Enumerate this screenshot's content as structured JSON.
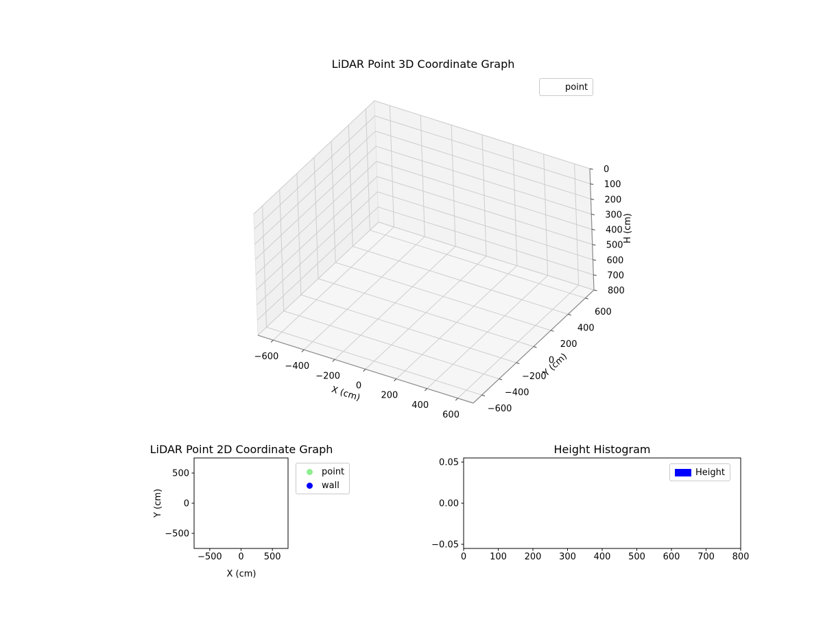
{
  "figure": {
    "background": "#ffffff"
  },
  "colors": {
    "pane_bottom": "#f6f6f6",
    "pane_left": "#f0f0f0",
    "pane_back": "#f3f3f3",
    "grid3d": "#cdcdcd",
    "axis3d_line": "#8a8a8a",
    "tick": "#444444",
    "spine": "#000000",
    "text": "#000000"
  },
  "chart_data": [
    {
      "id": "lidar-3d",
      "type": "scatter",
      "projection": "3d",
      "title": "LiDAR Point 3D Coordinate Graph",
      "xlabel": "X (cm)",
      "ylabel": "Y (cm)",
      "zlabel": "H (cm)",
      "xlim": [
        -700,
        700
      ],
      "ylim": [
        -700,
        700
      ],
      "zlim": [
        0,
        800
      ],
      "z_axis_inverted": true,
      "grid": true,
      "x_ticks": [
        -600,
        -400,
        -200,
        0,
        200,
        400,
        600
      ],
      "x_tick_labels": [
        "−600",
        "−400",
        "−200",
        "0",
        "200",
        "400",
        "600"
      ],
      "y_ticks": [
        -600,
        -400,
        -200,
        0,
        200,
        400,
        600
      ],
      "y_tick_labels": [
        "−600",
        "−400",
        "−200",
        "0",
        "200",
        "400",
        "600"
      ],
      "z_ticks": [
        0,
        100,
        200,
        300,
        400,
        500,
        600,
        700,
        800
      ],
      "z_tick_labels": [
        "0",
        "100",
        "200",
        "300",
        "400",
        "500",
        "600",
        "700",
        "800"
      ],
      "legend": {
        "position": "upper right",
        "entries": [
          {
            "label": "point",
            "marker": "none",
            "color": null
          }
        ]
      },
      "series": [
        {
          "name": "point",
          "points": []
        }
      ]
    },
    {
      "id": "lidar-2d",
      "type": "scatter",
      "title": "LiDAR Point 2D Coordinate Graph",
      "xlabel": "X (cm)",
      "ylabel": "Y (cm)",
      "xlim": [
        -750,
        750
      ],
      "ylim": [
        -750,
        750
      ],
      "grid": false,
      "x_ticks": [
        -500,
        0,
        500
      ],
      "x_tick_labels": [
        "−500",
        "0",
        "500"
      ],
      "y_ticks": [
        500,
        0,
        -500
      ],
      "y_tick_labels": [
        "500",
        "0",
        "−500"
      ],
      "legend": {
        "position": "outside upper right",
        "entries": [
          {
            "label": "point",
            "marker": "dot",
            "color": "#90ee90"
          },
          {
            "label": "wall",
            "marker": "dot",
            "color": "#0000ff"
          }
        ]
      },
      "series": [
        {
          "name": "point",
          "points": []
        },
        {
          "name": "wall",
          "points": []
        }
      ]
    },
    {
      "id": "height-histogram",
      "type": "bar",
      "title": "Height Histogram",
      "xlabel": "",
      "ylabel": "",
      "xlim": [
        0,
        800
      ],
      "ylim": [
        -0.055,
        0.055
      ],
      "grid": false,
      "x_ticks": [
        0,
        100,
        200,
        300,
        400,
        500,
        600,
        700,
        800
      ],
      "x_tick_labels": [
        "0",
        "100",
        "200",
        "300",
        "400",
        "500",
        "600",
        "700",
        "800"
      ],
      "y_ticks": [
        0.05,
        0,
        -0.05
      ],
      "y_tick_labels": [
        "0.05",
        "0.00",
        "−0.05"
      ],
      "legend": {
        "position": "upper right",
        "entries": [
          {
            "label": "Height",
            "marker": "patch",
            "color": "#0000ff"
          }
        ]
      },
      "values": []
    }
  ]
}
